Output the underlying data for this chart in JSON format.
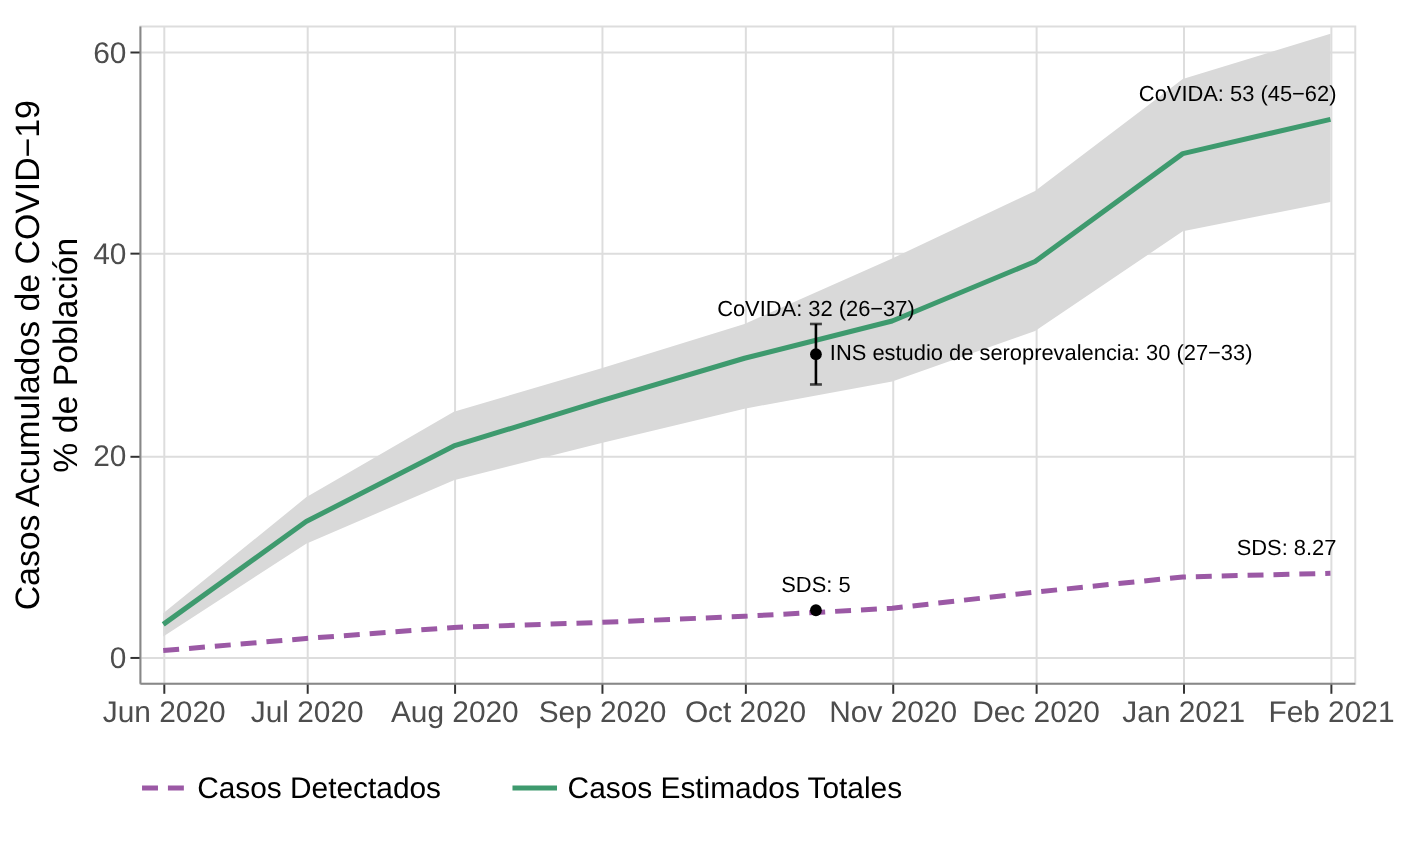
{
  "chart_data": {
    "type": "line",
    "ylabel": "Casos Acumulados de COVID−19\n% de Población",
    "x": [
      "2020-06-01",
      "2020-07-01",
      "2020-08-01",
      "2020-09-01",
      "2020-10-01",
      "2020-11-01",
      "2020-12-01",
      "2021-01-01",
      "2021-02-01"
    ],
    "series": [
      {
        "name": "Casos Detectados",
        "color": "#9b59a5",
        "line_style": "dashed",
        "values": [
          0.6,
          1.8,
          2.9,
          3.4,
          4.0,
          4.8,
          6.4,
          7.9,
          8.27
        ]
      },
      {
        "name": "Casos Estimados Totales",
        "color": "#3e9a6e",
        "line_style": "solid",
        "values": [
          3.2,
          13.4,
          20.9,
          25.4,
          29.6,
          33.3,
          39.2,
          49.9,
          53.3
        ],
        "lower": [
          2.0,
          11.2,
          17.5,
          21.2,
          24.6,
          27.3,
          32.3,
          42.2,
          45.1
        ],
        "upper": [
          4.3,
          15.8,
          24.3,
          28.6,
          33.0,
          39.5,
          46.2,
          57.3,
          61.8
        ]
      },
      {
        "type": "scatter",
        "color": "#000000",
        "x": [
          "2020-10-16"
        ],
        "values": [
          30
        ],
        "errors": [
          [
            27,
            33
          ]
        ]
      },
      {
        "type": "scatter",
        "color": "#000000",
        "x": [
          "2020-10-16"
        ],
        "values": [
          4.6
        ]
      }
    ],
    "annotations": [
      {
        "text": "CoVIDA: 32 (26−37)",
        "x": "2020-10-16",
        "y": 32
      },
      {
        "text": "CoVIDA: 53 (45−62)",
        "x": "2021-02-01",
        "y": 53.3
      },
      {
        "text": "INS estudio de seroprevalencia: 30 (27−33)",
        "x": "2020-10-16",
        "y": 30
      },
      {
        "text": "SDS: 5",
        "x": "2020-10-16",
        "y": 4.6
      },
      {
        "text": "SDS:  8.27",
        "x": "2021-02-01",
        "y": 8.27
      }
    ],
    "xlim": [
      "2020-05-27",
      "2021-02-06"
    ],
    "xticks": [
      {
        "value": "2020-06-01",
        "label": "Jun 2020"
      },
      {
        "value": "2020-07-01",
        "label": "Jul 2020"
      },
      {
        "value": "2020-08-01",
        "label": "Aug 2020"
      },
      {
        "value": "2020-09-01",
        "label": "Sep 2020"
      },
      {
        "value": "2020-10-01",
        "label": "Oct 2020"
      },
      {
        "value": "2020-11-01",
        "label": "Nov 2020"
      },
      {
        "value": "2020-12-01",
        "label": "Dec 2020"
      },
      {
        "value": "2021-01-01",
        "label": "Jan 2021"
      },
      {
        "value": "2021-02-01",
        "label": "Feb 2021"
      }
    ],
    "ylim": [
      -2.6,
      62.6
    ],
    "yticks": [
      0,
      20,
      40,
      60
    ],
    "grid": true,
    "legend": "bottom"
  }
}
